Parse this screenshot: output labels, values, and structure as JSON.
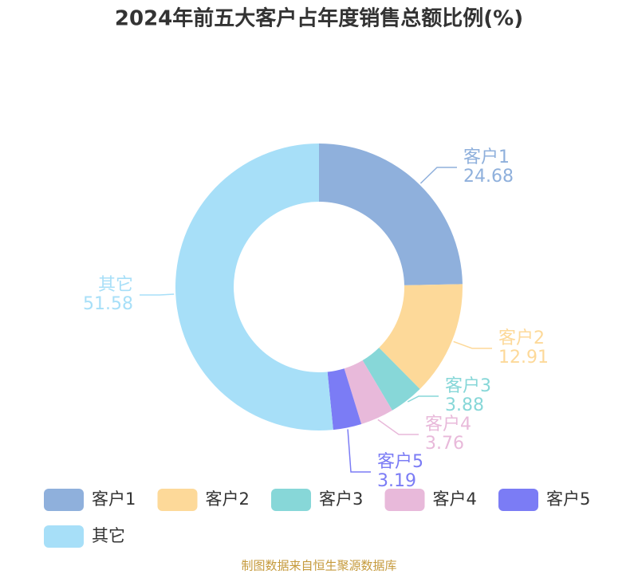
{
  "chart_data": {
    "type": "pie",
    "title": "2024年前五大客户占年度销售总额比例(%)",
    "categories": [
      "客户1",
      "客户2",
      "客户3",
      "客户4",
      "客户5",
      "其它"
    ],
    "values": [
      24.68,
      12.91,
      3.88,
      3.76,
      3.19,
      51.58
    ],
    "colors": [
      "#8fb0dc",
      "#fdd999",
      "#87d7d8",
      "#e8b9da",
      "#7b7cf5",
      "#a7dff8"
    ],
    "donut": true,
    "source": "制图数据来自恒生聚源数据库"
  }
}
